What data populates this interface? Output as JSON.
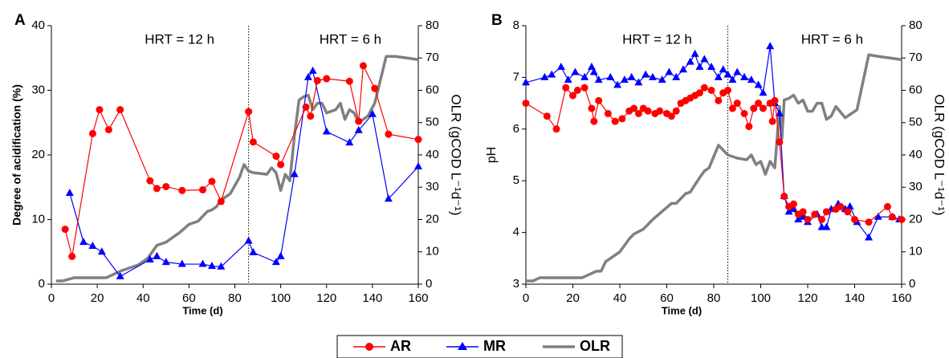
{
  "chart_data": [
    {
      "type": "line",
      "panel_label": "A",
      "annotations": [
        "HRT = 12 h",
        "HRT = 6 h"
      ],
      "vline": 86,
      "xlabel": "Time (d)",
      "ylabel": "Degree of acidification (%)",
      "y2label": "OLR (gCOD L⁻¹d⁻¹)",
      "xlim": [
        0,
        160
      ],
      "xticks": [
        0,
        20,
        40,
        60,
        80,
        100,
        120,
        140,
        160
      ],
      "ylim": [
        0,
        40
      ],
      "yticks": [
        0,
        10,
        20,
        30,
        40
      ],
      "y2lim": [
        0,
        80
      ],
      "y2ticks": [
        0,
        10,
        20,
        30,
        40,
        50,
        60,
        70,
        80
      ],
      "series": [
        {
          "name": "AR",
          "color": "#ff0000",
          "marker": "circle",
          "x": [
            6,
            9,
            18,
            21,
            25,
            30,
            43,
            46,
            50,
            57,
            66,
            70,
            74,
            86,
            88,
            98,
            100,
            111,
            113,
            116,
            120,
            130,
            134,
            136,
            141,
            147,
            160
          ],
          "values": [
            8.5,
            4.3,
            23.3,
            27,
            23.9,
            27,
            16,
            14.8,
            15.1,
            14.5,
            14.6,
            15.9,
            12.8,
            26.7,
            22,
            19.8,
            18.5,
            27.4,
            26,
            31.5,
            31.8,
            31.4,
            25.2,
            33.8,
            30.3,
            23.2,
            22.4
          ]
        },
        {
          "name": "MR",
          "color": "#0000ff",
          "marker": "triangle",
          "x": [
            8,
            14,
            18,
            22,
            30,
            43,
            46,
            50,
            57,
            66,
            70,
            74,
            86,
            88,
            98,
            100,
            106,
            112,
            114,
            120,
            130,
            134,
            140,
            147,
            160
          ],
          "values": [
            14.1,
            6.5,
            5.9,
            5,
            1.2,
            3.8,
            4.3,
            3.4,
            3.1,
            3.1,
            2.8,
            2.7,
            6.7,
            4.9,
            3.4,
            4.3,
            17,
            32,
            33,
            23.6,
            21.9,
            23.8,
            26.3,
            13.2,
            18.2
          ]
        },
        {
          "name": "OLR",
          "color": "#808080",
          "marker": "none",
          "axis": "y2",
          "x": [
            2,
            5,
            10,
            20,
            24,
            30,
            38,
            42,
            46,
            50,
            56,
            60,
            64,
            68,
            70,
            72,
            74,
            78,
            82,
            84,
            86,
            88,
            94,
            96,
            98,
            100,
            102,
            104,
            106,
            108,
            110,
            112,
            114,
            116,
            118,
            120,
            122,
            124,
            126,
            128,
            130,
            132,
            134,
            138,
            141,
            146,
            150,
            160
          ],
          "values": [
            1,
            1,
            2,
            2,
            2,
            4,
            6,
            8,
            12,
            13,
            16,
            18.5,
            19.5,
            22.5,
            23,
            24,
            26,
            28,
            33,
            37,
            35,
            34.5,
            34,
            36,
            34.5,
            29,
            34,
            32,
            46,
            57,
            58,
            58.5,
            54,
            56,
            56,
            53,
            53.5,
            54,
            56,
            51,
            54,
            53,
            50,
            52,
            56,
            70.5,
            70.5,
            69.5
          ]
        }
      ]
    },
    {
      "type": "line",
      "panel_label": "B",
      "annotations": [
        "HRT = 12 h",
        "HRT = 6 h"
      ],
      "vline": 86,
      "xlabel": "Time (d)",
      "ylabel": "pH",
      "y2label": "OLR (gCOD L⁻¹d⁻¹)",
      "xlim": [
        0,
        160
      ],
      "xticks": [
        0,
        20,
        40,
        60,
        80,
        100,
        120,
        140,
        160
      ],
      "ylim": [
        3,
        8
      ],
      "yticks": [
        3,
        4,
        5,
        6,
        7,
        8
      ],
      "y2lim": [
        0,
        80
      ],
      "y2ticks": [
        0,
        10,
        20,
        30,
        40,
        50,
        60,
        70,
        80
      ],
      "series": [
        {
          "color": "#ff0000",
          "marker": "circle",
          "x": [
            0,
            9,
            13,
            17,
            20,
            22,
            25,
            28,
            29,
            31,
            35,
            38,
            41,
            44,
            46,
            48,
            50,
            52,
            55,
            57,
            60,
            62,
            64,
            66,
            68,
            70,
            72,
            74,
            76,
            79,
            82,
            84,
            86,
            88,
            90,
            93,
            95,
            97,
            99,
            101,
            104,
            105,
            106,
            108,
            110,
            112,
            114,
            116,
            118,
            120,
            123,
            126,
            128,
            132,
            134,
            137,
            140,
            146,
            154,
            156,
            160
          ],
          "values": [
            6.5,
            6.25,
            6.0,
            6.8,
            6.65,
            6.75,
            6.8,
            6.4,
            6.15,
            6.55,
            6.3,
            6.15,
            6.2,
            6.35,
            6.4,
            6.3,
            6.4,
            6.35,
            6.3,
            6.35,
            6.3,
            6.25,
            6.35,
            6.5,
            6.55,
            6.6,
            6.65,
            6.7,
            6.8,
            6.75,
            6.55,
            6.7,
            6.75,
            6.4,
            6.5,
            6.3,
            6.05,
            6.4,
            6.5,
            6.4,
            6.5,
            6.15,
            6.55,
            5.75,
            4.7,
            4.5,
            4.55,
            4.35,
            4.4,
            4.25,
            4.35,
            4.25,
            4.4,
            4.45,
            4.5,
            4.4,
            4.25,
            4.2,
            4.5,
            4.3,
            4.25
          ]
        },
        {
          "color": "#0000ff",
          "marker": "triangle",
          "x": [
            0,
            8,
            11,
            15,
            18,
            21,
            25,
            28,
            29,
            31,
            36,
            39,
            42,
            45,
            48,
            51,
            54,
            58,
            61,
            64,
            67,
            70,
            72,
            74,
            76,
            79,
            82,
            84,
            86,
            88,
            90,
            93,
            96,
            99,
            101,
            104,
            106,
            108,
            110,
            112,
            114,
            116,
            118,
            120,
            124,
            126,
            128,
            130,
            133,
            136,
            138,
            141,
            146,
            150,
            156,
            159
          ],
          "values": [
            6.9,
            7.0,
            7.05,
            7.2,
            6.95,
            7.1,
            7.0,
            7.2,
            7.1,
            6.95,
            7.0,
            6.85,
            6.95,
            7.0,
            6.9,
            7.05,
            7.0,
            6.95,
            7.1,
            7.0,
            7.15,
            7.3,
            7.45,
            7.2,
            7.35,
            7.2,
            7.0,
            7.15,
            7.05,
            6.95,
            7.1,
            7.0,
            6.95,
            6.85,
            6.7,
            7.6,
            6.5,
            6.3,
            4.7,
            4.4,
            4.45,
            4.25,
            4.3,
            4.2,
            4.35,
            4.1,
            4.1,
            4.45,
            4.55,
            4.45,
            4.5,
            4.2,
            3.9,
            4.3,
            4.3,
            4.25
          ]
        },
        {
          "color": "#808080",
          "marker": "none",
          "axis": "y2",
          "x": [
            0,
            3,
            6,
            12,
            22,
            24,
            30,
            32,
            34,
            38,
            40,
            44,
            46,
            50,
            54,
            58,
            62,
            64,
            68,
            70,
            74,
            76,
            78,
            82,
            86,
            90,
            94,
            96,
            98,
            100,
            102,
            104,
            106,
            108,
            109,
            110,
            112,
            114,
            116,
            118,
            120,
            122,
            124,
            126,
            128,
            130,
            132,
            136,
            138,
            141,
            146,
            150,
            160
          ],
          "values": [
            1,
            1,
            2,
            2,
            2,
            2,
            4,
            4,
            7,
            9,
            10,
            14,
            15.5,
            17,
            20,
            22.5,
            25,
            25,
            28,
            28.5,
            33,
            35,
            36,
            43,
            40,
            39,
            38.5,
            40,
            37,
            38,
            34,
            38,
            36,
            55,
            45,
            57,
            57.5,
            58.5,
            56,
            57,
            53.5,
            53.5,
            56,
            56,
            51,
            52,
            55,
            51.5,
            52.5,
            54,
            71,
            70.5,
            69.5
          ]
        }
      ]
    }
  ]
}
